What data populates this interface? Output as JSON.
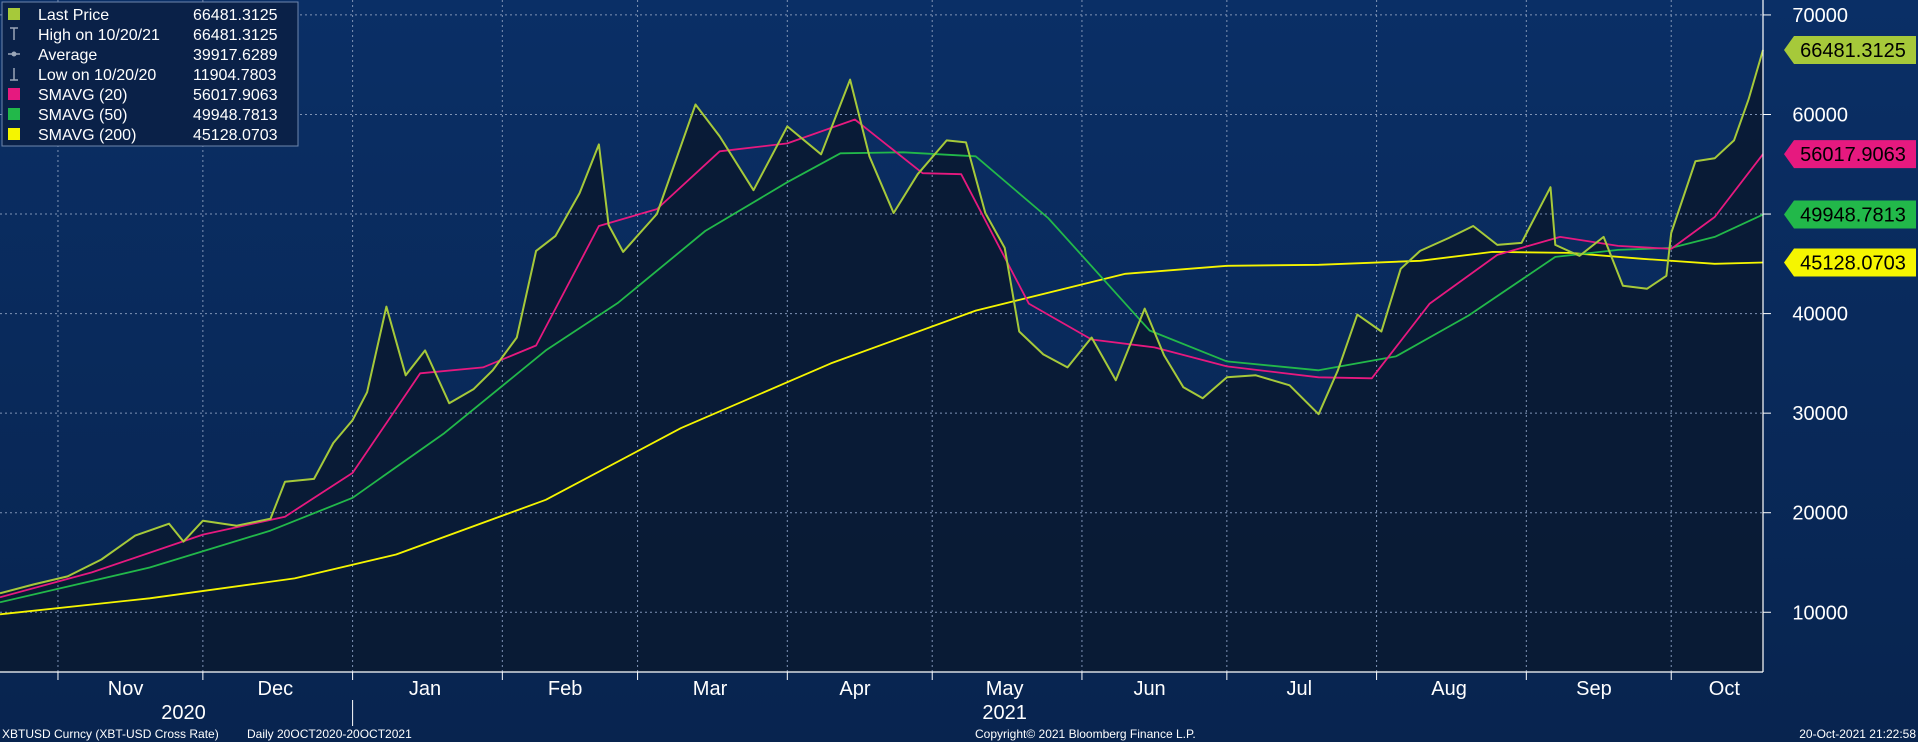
{
  "chart_data": {
    "type": "line",
    "ticker": "XBTUSD Curncy (XBT-USD Cross Rate)",
    "period": "Daily 20OCT2020-20OCT2021",
    "copyright": "Copyright© 2021 Bloomberg Finance L.P.",
    "timestamp": "20-Oct-2021 21:22:58",
    "x_months": [
      "Nov",
      "Dec",
      "Jan",
      "Feb",
      "Mar",
      "Apr",
      "May",
      "Jun",
      "Jul",
      "Aug",
      "Sep",
      "Oct"
    ],
    "x_years": [
      "2020",
      "2021"
    ],
    "y_ticks": [
      10000,
      20000,
      30000,
      40000,
      50000,
      60000,
      70000
    ],
    "ylim": [
      4000,
      71500
    ],
    "grid": true,
    "legend_position": "top-left",
    "legend": [
      {
        "label": "Last Price",
        "value": "66481.3125",
        "color": "#a6c93a",
        "marker": "square"
      },
      {
        "label": "High on 10/20/21",
        "value": "66481.3125",
        "color": "#9aa6b8",
        "marker": "high"
      },
      {
        "label": "Average",
        "value": "39917.6289",
        "color": "#9aa6b8",
        "marker": "avg"
      },
      {
        "label": "Low on 10/20/20",
        "value": "11904.7803",
        "color": "#9aa6b8",
        "marker": "low"
      },
      {
        "label": "SMAVG (20)",
        "value": "56017.9063",
        "color": "#e6197f",
        "marker": "square"
      },
      {
        "label": "SMAVG (50)",
        "value": "49948.7813",
        "color": "#22b84a",
        "marker": "square"
      },
      {
        "label": "SMAVG (200)",
        "value": "45128.0703",
        "color": "#f5f500",
        "marker": "square"
      }
    ],
    "end_labels": [
      {
        "value": 66481.3125,
        "text": "66481.3125",
        "color": "#a6c93a"
      },
      {
        "value": 56017.9063,
        "text": "56017.9063",
        "color": "#e6197f"
      },
      {
        "value": 49948.7813,
        "text": "49948.7813",
        "color": "#22b84a"
      },
      {
        "value": 45128.0703,
        "text": "45128.0703",
        "color": "#f5f500"
      }
    ],
    "series": [
      {
        "name": "Last Price",
        "color": "#a6c93a",
        "x": [
          "2020-10-20",
          "2020-10-27",
          "2020-11-03",
          "2020-11-10",
          "2020-11-17",
          "2020-11-24",
          "2020-11-27",
          "2020-12-01",
          "2020-12-08",
          "2020-12-15",
          "2020-12-18",
          "2020-12-24",
          "2020-12-28",
          "2021-01-01",
          "2021-01-04",
          "2021-01-08",
          "2021-01-12",
          "2021-01-16",
          "2021-01-21",
          "2021-01-26",
          "2021-01-30",
          "2021-02-04",
          "2021-02-08",
          "2021-02-12",
          "2021-02-17",
          "2021-02-21",
          "2021-02-23",
          "2021-02-26",
          "2021-03-05",
          "2021-03-13",
          "2021-03-18",
          "2021-03-25",
          "2021-04-01",
          "2021-04-08",
          "2021-04-14",
          "2021-04-18",
          "2021-04-23",
          "2021-04-28",
          "2021-05-04",
          "2021-05-08",
          "2021-05-12",
          "2021-05-16",
          "2021-05-19",
          "2021-05-24",
          "2021-05-29",
          "2021-06-03",
          "2021-06-08",
          "2021-06-14",
          "2021-06-18",
          "2021-06-22",
          "2021-06-26",
          "2021-07-01",
          "2021-07-07",
          "2021-07-14",
          "2021-07-20",
          "2021-07-24",
          "2021-07-28",
          "2021-08-02",
          "2021-08-06",
          "2021-08-10",
          "2021-08-16",
          "2021-08-21",
          "2021-08-26",
          "2021-08-31",
          "2021-09-06",
          "2021-09-07",
          "2021-09-12",
          "2021-09-17",
          "2021-09-21",
          "2021-09-26",
          "2021-09-30",
          "2021-10-01",
          "2021-10-06",
          "2021-10-10",
          "2021-10-14",
          "2021-10-17",
          "2021-10-20"
        ],
        "values": [
          11905,
          12800,
          13600,
          15300,
          17700,
          18900,
          17100,
          19200,
          18700,
          19400,
          23100,
          23400,
          27000,
          29300,
          32100,
          40700,
          33800,
          36300,
          31000,
          32400,
          34300,
          37600,
          46300,
          47800,
          52100,
          57000,
          48900,
          46200,
          50000,
          61000,
          57800,
          52400,
          58800,
          56000,
          63500,
          55800,
          50100,
          54000,
          57400,
          57200,
          50100,
          46600,
          38200,
          35900,
          34600,
          37600,
          33300,
          40500,
          35800,
          32600,
          31500,
          33600,
          33800,
          32800,
          29900,
          34300,
          39900,
          38200,
          44500,
          46300,
          47600,
          48800,
          46900,
          47100,
          52700,
          46900,
          45800,
          47700,
          42800,
          42500,
          43800,
          48100,
          55300,
          55600,
          57400,
          61500,
          66481
        ]
      },
      {
        "name": "SMAVG (20)",
        "color": "#e6197f",
        "x": [
          "2020-10-20",
          "2020-11-08",
          "2020-12-01",
          "2020-12-18",
          "2021-01-01",
          "2021-01-15",
          "2021-01-28",
          "2021-02-08",
          "2021-02-21",
          "2021-03-05",
          "2021-03-18",
          "2021-04-01",
          "2021-04-15",
          "2021-04-29",
          "2021-05-07",
          "2021-05-21",
          "2021-06-03",
          "2021-06-16",
          "2021-07-01",
          "2021-07-20",
          "2021-07-31",
          "2021-08-12",
          "2021-08-26",
          "2021-09-08",
          "2021-09-20",
          "2021-10-01",
          "2021-10-10",
          "2021-10-20"
        ],
        "values": [
          11500,
          14000,
          17800,
          19600,
          24000,
          34000,
          34600,
          36800,
          48800,
          50500,
          56300,
          57100,
          59500,
          54100,
          54000,
          41000,
          37400,
          36600,
          34700,
          33600,
          33500,
          41000,
          45900,
          47700,
          46800,
          46500,
          49700,
          56018
        ]
      },
      {
        "name": "SMAVG (50)",
        "color": "#22b84a",
        "x": [
          "2020-10-20",
          "2020-11-20",
          "2020-12-15",
          "2021-01-01",
          "2021-01-20",
          "2021-02-10",
          "2021-02-25",
          "2021-03-15",
          "2021-04-01",
          "2021-04-12",
          "2021-04-25",
          "2021-05-10",
          "2021-05-25",
          "2021-06-15",
          "2021-07-01",
          "2021-07-20",
          "2021-08-05",
          "2021-08-20",
          "2021-09-07",
          "2021-09-20",
          "2021-10-01",
          "2021-10-10",
          "2021-10-20"
        ],
        "values": [
          11000,
          14500,
          18200,
          21500,
          28000,
          36300,
          41100,
          48300,
          53200,
          56100,
          56200,
          55800,
          49600,
          38300,
          35200,
          34300,
          35700,
          39800,
          45700,
          46400,
          46600,
          47700,
          49949
        ]
      },
      {
        "name": "SMAVG (200)",
        "color": "#f5f500",
        "x": [
          "2020-10-20",
          "2020-11-20",
          "2020-12-20",
          "2021-01-10",
          "2021-02-10",
          "2021-03-10",
          "2021-04-10",
          "2021-05-10",
          "2021-06-10",
          "2021-07-01",
          "2021-07-20",
          "2021-08-10",
          "2021-08-25",
          "2021-09-10",
          "2021-09-25",
          "2021-10-10",
          "2021-10-20"
        ],
        "values": [
          9800,
          11400,
          13400,
          15800,
          21300,
          28500,
          35000,
          40300,
          44000,
          44800,
          44900,
          45300,
          46200,
          46100,
          45500,
          45000,
          45128
        ]
      }
    ]
  }
}
